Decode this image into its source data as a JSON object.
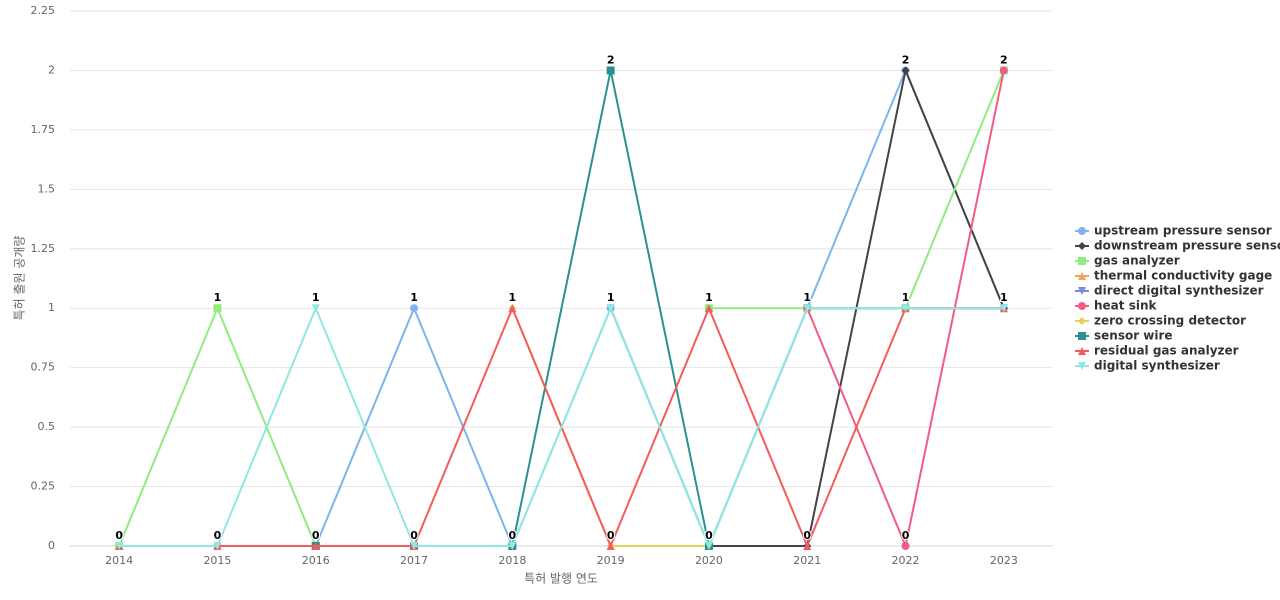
{
  "chart_data": {
    "type": "line",
    "x_label": "특허 발행 연도",
    "y_label": "특허 출원 공개량",
    "categories": [
      "2014",
      "2015",
      "2016",
      "2017",
      "2018",
      "2019",
      "2020",
      "2021",
      "2022",
      "2023"
    ],
    "ylim": [
      0,
      2.25
    ],
    "yticks": [
      0,
      0.25,
      0.5,
      0.75,
      1,
      1.25,
      1.5,
      1.75,
      2,
      2.25
    ],
    "grid": true,
    "legend": "right",
    "series": [
      {
        "name": "upstream pressure sensor",
        "color": "#7cb5ec",
        "marker": "circle",
        "values": [
          0,
          0,
          0,
          1,
          0,
          1,
          0,
          1,
          2,
          1
        ]
      },
      {
        "name": "downstream pressure sensor",
        "color": "#434348",
        "marker": "diamond",
        "values": [
          null,
          null,
          null,
          null,
          null,
          null,
          0,
          0,
          2,
          1
        ]
      },
      {
        "name": "gas analyzer",
        "color": "#90ed7d",
        "marker": "square",
        "values": [
          0,
          1,
          0,
          null,
          null,
          null,
          1,
          1,
          1,
          2
        ]
      },
      {
        "name": "thermal conductivity gage",
        "color": "#f7a35c",
        "marker": "triangle",
        "values": [
          null,
          null,
          null,
          null,
          null,
          0,
          null,
          null,
          null,
          null
        ]
      },
      {
        "name": "direct digital synthesizer",
        "color": "#8085e9",
        "marker": "triangle-down",
        "values": [
          null,
          null,
          null,
          null,
          null,
          1,
          0,
          1,
          1,
          1
        ]
      },
      {
        "name": "heat sink",
        "color": "#f15c80",
        "marker": "circle",
        "values": [
          null,
          null,
          null,
          null,
          null,
          null,
          null,
          1,
          0,
          2
        ]
      },
      {
        "name": "zero crossing detector",
        "color": "#e4d354",
        "marker": "diamond",
        "values": [
          null,
          null,
          null,
          null,
          1,
          0,
          0,
          null,
          null,
          null
        ]
      },
      {
        "name": "sensor wire",
        "color": "#2b908f",
        "marker": "square",
        "values": [
          null,
          null,
          0,
          0,
          0,
          2,
          0,
          null,
          null,
          null
        ]
      },
      {
        "name": "residual gas analyzer",
        "color": "#f45b5b",
        "marker": "triangle",
        "values": [
          0,
          0,
          0,
          0,
          1,
          0,
          1,
          0,
          1,
          1
        ]
      },
      {
        "name": "digital synthesizer",
        "color": "#91e8e1",
        "marker": "triangle-down",
        "values": [
          0,
          0,
          1,
          0,
          0,
          1,
          0,
          1,
          1,
          1
        ]
      }
    ]
  }
}
